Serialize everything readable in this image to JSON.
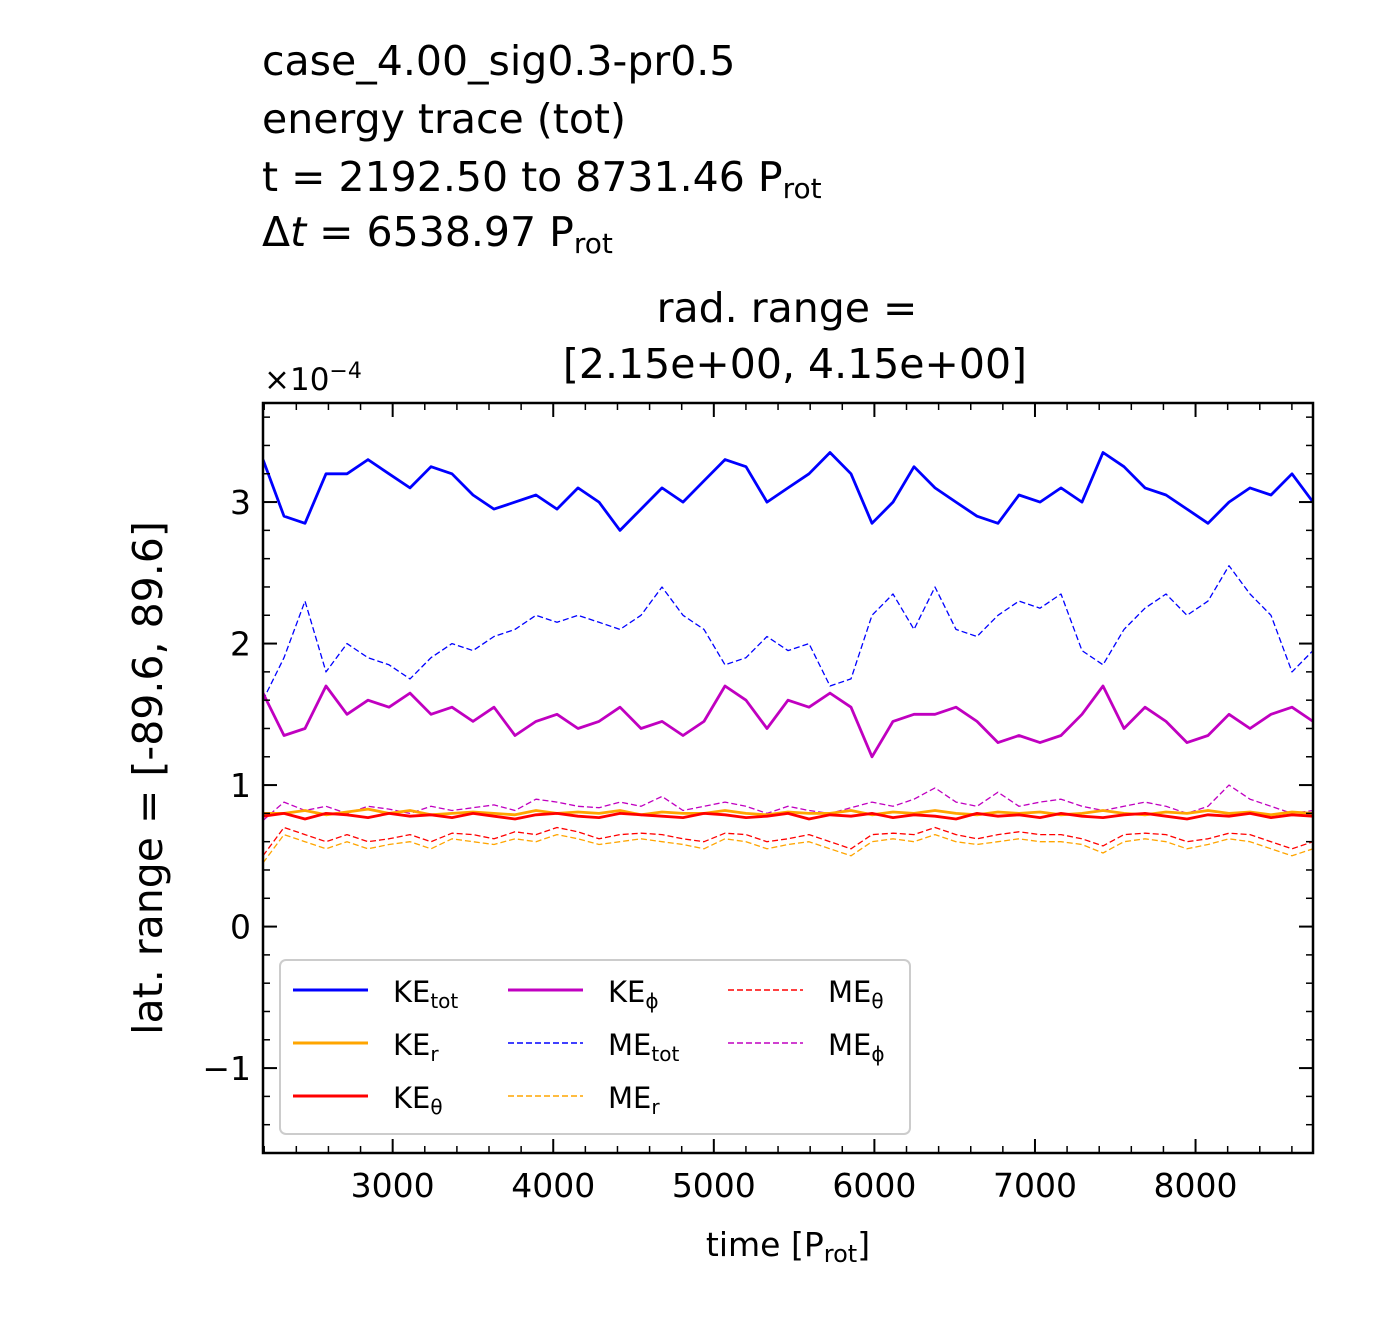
{
  "header": {
    "line1": "case_4.00_sig0.3-pr0.5",
    "line2": "energy trace (tot)",
    "line3_main": "t = 2192.50 to 8731.46 P",
    "line3_sub": "rot",
    "line4_delta": "Δ",
    "line4_t": "t",
    "line4_main": " = 6538.97 P",
    "line4_sub": "rot"
  },
  "chart_data": {
    "type": "line",
    "title_line1": "rad. range =",
    "title_line2": "[2.15e+00, 4.15e+00]",
    "xlabel_main": "time [P",
    "xlabel_sub": "rot",
    "xlabel_end": "]",
    "ylabel": "lat. range = [-89.6, 89.6]",
    "y_multiplier": "×10",
    "y_multiplier_exp": "−4",
    "xlim": [
      2192.5,
      8731.46
    ],
    "ylim": [
      -1.6,
      3.7
    ],
    "x_ticks": [
      3000,
      4000,
      5000,
      6000,
      7000,
      8000
    ],
    "x_tick_labels": [
      "3000",
      "4000",
      "5000",
      "6000",
      "7000",
      "8000"
    ],
    "y_ticks": [
      -1,
      0,
      1,
      2,
      3
    ],
    "y_tick_labels": [
      "−1",
      "0",
      "1",
      "2",
      "3"
    ],
    "grid": false,
    "legend_position": "lower-left",
    "x": [
      2192.5,
      2323.3,
      2454.1,
      2584.9,
      2715.6,
      2846.4,
      2977.2,
      3108.0,
      3238.8,
      3369.6,
      3500.3,
      3631.1,
      3761.9,
      3892.7,
      4023.5,
      4154.3,
      4285.1,
      4415.8,
      4546.6,
      4677.4,
      4808.2,
      4939.0,
      5069.8,
      5200.5,
      5331.3,
      5462.1,
      5592.9,
      5723.7,
      5854.5,
      5985.3,
      6116.0,
      6246.8,
      6377.6,
      6508.4,
      6639.2,
      6770.0,
      6900.7,
      7031.5,
      7162.3,
      7293.1,
      7423.9,
      7554.7,
      7685.4,
      7816.2,
      7947.0,
      8077.8,
      8208.6,
      8339.4,
      8470.2,
      8600.9,
      8731.5
    ],
    "series": [
      {
        "name": "KE",
        "sub": "tot",
        "color": "#0000ff",
        "dash": "solid",
        "width": 2.8,
        "values": [
          3.3,
          2.9,
          2.85,
          3.2,
          3.2,
          3.3,
          3.2,
          3.1,
          3.25,
          3.2,
          3.05,
          2.95,
          3.0,
          3.05,
          2.95,
          3.1,
          3.0,
          2.8,
          2.95,
          3.1,
          3.0,
          3.15,
          3.3,
          3.25,
          3.0,
          3.1,
          3.2,
          3.35,
          3.2,
          2.85,
          3.0,
          3.25,
          3.1,
          3.0,
          2.9,
          2.85,
          3.05,
          3.0,
          3.1,
          3.0,
          3.35,
          3.25,
          3.1,
          3.05,
          2.95,
          2.85,
          3.0,
          3.1,
          3.05,
          3.2,
          3.0
        ]
      },
      {
        "name": "KE",
        "sub": "r",
        "color": "#ffa500",
        "dash": "solid",
        "width": 2.8,
        "values": [
          0.8,
          0.8,
          0.82,
          0.79,
          0.81,
          0.83,
          0.8,
          0.82,
          0.79,
          0.8,
          0.81,
          0.8,
          0.79,
          0.82,
          0.8,
          0.81,
          0.8,
          0.82,
          0.79,
          0.81,
          0.8,
          0.8,
          0.82,
          0.8,
          0.79,
          0.81,
          0.8,
          0.8,
          0.82,
          0.79,
          0.81,
          0.8,
          0.82,
          0.8,
          0.79,
          0.81,
          0.8,
          0.81,
          0.79,
          0.8,
          0.82,
          0.8,
          0.79,
          0.81,
          0.8,
          0.82,
          0.8,
          0.81,
          0.79,
          0.81,
          0.8
        ]
      },
      {
        "name": "KE",
        "sub": "θ",
        "color": "#ff0000",
        "dash": "solid",
        "width": 2.8,
        "values": [
          0.78,
          0.8,
          0.76,
          0.8,
          0.79,
          0.77,
          0.8,
          0.78,
          0.79,
          0.77,
          0.8,
          0.78,
          0.76,
          0.79,
          0.8,
          0.78,
          0.77,
          0.8,
          0.79,
          0.78,
          0.77,
          0.8,
          0.79,
          0.77,
          0.78,
          0.8,
          0.76,
          0.79,
          0.78,
          0.8,
          0.77,
          0.79,
          0.78,
          0.76,
          0.8,
          0.78,
          0.79,
          0.77,
          0.8,
          0.78,
          0.77,
          0.79,
          0.8,
          0.78,
          0.76,
          0.79,
          0.78,
          0.8,
          0.77,
          0.79,
          0.78
        ]
      },
      {
        "name": "KE",
        "sub": "ϕ",
        "color": "#c000c0",
        "dash": "solid",
        "width": 2.8,
        "values": [
          1.65,
          1.35,
          1.4,
          1.7,
          1.5,
          1.6,
          1.55,
          1.65,
          1.5,
          1.55,
          1.45,
          1.55,
          1.35,
          1.45,
          1.5,
          1.4,
          1.45,
          1.55,
          1.4,
          1.45,
          1.35,
          1.45,
          1.7,
          1.6,
          1.4,
          1.6,
          1.55,
          1.65,
          1.55,
          1.2,
          1.45,
          1.5,
          1.5,
          1.55,
          1.45,
          1.3,
          1.35,
          1.3,
          1.35,
          1.5,
          1.7,
          1.4,
          1.55,
          1.45,
          1.3,
          1.35,
          1.5,
          1.4,
          1.5,
          1.55,
          1.45
        ]
      },
      {
        "name": "ME",
        "sub": "tot",
        "color": "#0000ff",
        "dash": "dashed",
        "width": 1.3,
        "values": [
          1.6,
          1.9,
          2.3,
          1.8,
          2.0,
          1.9,
          1.85,
          1.75,
          1.9,
          2.0,
          1.95,
          2.05,
          2.1,
          2.2,
          2.15,
          2.2,
          2.15,
          2.1,
          2.2,
          2.4,
          2.2,
          2.1,
          1.85,
          1.9,
          2.05,
          1.95,
          2.0,
          1.7,
          1.75,
          2.2,
          2.35,
          2.1,
          2.4,
          2.1,
          2.05,
          2.2,
          2.3,
          2.25,
          2.35,
          1.95,
          1.85,
          2.1,
          2.25,
          2.35,
          2.2,
          2.3,
          2.55,
          2.35,
          2.2,
          1.8,
          1.95
        ]
      },
      {
        "name": "ME",
        "sub": "r",
        "color": "#ffa500",
        "dash": "dashed",
        "width": 1.3,
        "values": [
          0.45,
          0.65,
          0.6,
          0.55,
          0.6,
          0.55,
          0.58,
          0.6,
          0.55,
          0.62,
          0.6,
          0.58,
          0.62,
          0.6,
          0.65,
          0.62,
          0.58,
          0.6,
          0.62,
          0.6,
          0.58,
          0.55,
          0.62,
          0.6,
          0.55,
          0.58,
          0.6,
          0.55,
          0.5,
          0.6,
          0.62,
          0.6,
          0.65,
          0.6,
          0.58,
          0.6,
          0.62,
          0.6,
          0.6,
          0.58,
          0.52,
          0.6,
          0.62,
          0.6,
          0.55,
          0.58,
          0.62,
          0.6,
          0.55,
          0.5,
          0.55
        ]
      },
      {
        "name": "ME",
        "sub": "θ",
        "color": "#ff0000",
        "dash": "dashed",
        "width": 1.3,
        "values": [
          0.5,
          0.7,
          0.65,
          0.6,
          0.65,
          0.6,
          0.62,
          0.65,
          0.6,
          0.66,
          0.65,
          0.62,
          0.67,
          0.65,
          0.7,
          0.67,
          0.62,
          0.65,
          0.66,
          0.65,
          0.62,
          0.6,
          0.66,
          0.65,
          0.6,
          0.62,
          0.65,
          0.6,
          0.55,
          0.65,
          0.66,
          0.65,
          0.7,
          0.65,
          0.62,
          0.65,
          0.67,
          0.65,
          0.65,
          0.62,
          0.57,
          0.65,
          0.66,
          0.65,
          0.6,
          0.62,
          0.66,
          0.65,
          0.6,
          0.55,
          0.6
        ]
      },
      {
        "name": "ME",
        "sub": "ϕ",
        "color": "#c000c0",
        "dash": "dashed",
        "width": 1.3,
        "values": [
          0.75,
          0.88,
          0.82,
          0.85,
          0.8,
          0.85,
          0.83,
          0.8,
          0.85,
          0.82,
          0.84,
          0.86,
          0.82,
          0.9,
          0.88,
          0.85,
          0.84,
          0.88,
          0.85,
          0.92,
          0.82,
          0.85,
          0.88,
          0.85,
          0.8,
          0.85,
          0.82,
          0.8,
          0.84,
          0.88,
          0.85,
          0.9,
          0.98,
          0.88,
          0.85,
          0.95,
          0.85,
          0.88,
          0.9,
          0.85,
          0.82,
          0.85,
          0.88,
          0.85,
          0.8,
          0.85,
          1.0,
          0.9,
          0.85,
          0.8,
          0.82
        ]
      }
    ]
  }
}
